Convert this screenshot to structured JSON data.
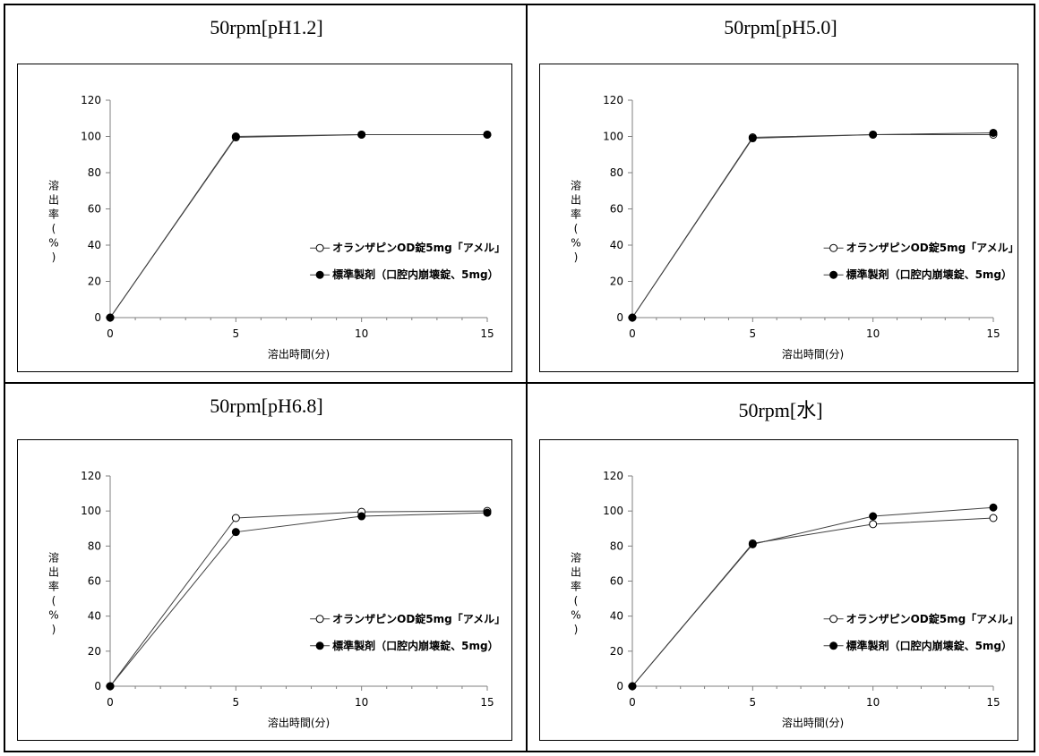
{
  "chart_data": [
    {
      "type": "line",
      "title": "50rpm[pH1.2]",
      "xlabel": "溶出時間(分)",
      "ylabel": "溶出率(%)",
      "x": [
        0,
        5,
        10,
        15
      ],
      "xlim": [
        0,
        15
      ],
      "ylim": [
        0,
        120
      ],
      "xticks": [
        "0",
        "5",
        "10",
        "15"
      ],
      "yticks": [
        "0",
        "20",
        "40",
        "60",
        "80",
        "100",
        "120"
      ],
      "grid": false,
      "legend_position": "bottom-right",
      "series": [
        {
          "name": "オランザピンOD錠5mg「アメル」",
          "marker": "open-circle",
          "values": [
            0,
            99.5,
            101,
            101
          ]
        },
        {
          "name": "標準製剤（口腔内崩壊錠、5mg）",
          "marker": "filled-circle",
          "values": [
            0,
            100,
            101,
            101
          ]
        }
      ]
    },
    {
      "type": "line",
      "title": "50rpm[pH5.0]",
      "xlabel": "溶出時間(分)",
      "ylabel": "溶出率(%)",
      "x": [
        0,
        5,
        10,
        15
      ],
      "xlim": [
        0,
        15
      ],
      "ylim": [
        0,
        120
      ],
      "xticks": [
        "0",
        "5",
        "10",
        "15"
      ],
      "yticks": [
        "0",
        "20",
        "40",
        "60",
        "80",
        "100",
        "120"
      ],
      "grid": false,
      "legend_position": "bottom-right",
      "series": [
        {
          "name": "オランザピンOD錠5mg「アメル」",
          "marker": "open-circle",
          "values": [
            0,
            99.5,
            101,
            101
          ]
        },
        {
          "name": "標準製剤（口腔内崩壊錠、5mg）",
          "marker": "filled-circle",
          "values": [
            0,
            99,
            101,
            102
          ]
        }
      ]
    },
    {
      "type": "line",
      "title": "50rpm[pH6.8]",
      "xlabel": "溶出時間(分)",
      "ylabel": "溶出率(%)",
      "x": [
        0,
        5,
        10,
        15
      ],
      "xlim": [
        0,
        15
      ],
      "ylim": [
        0,
        120
      ],
      "xticks": [
        "0",
        "5",
        "10",
        "15"
      ],
      "yticks": [
        "0",
        "20",
        "40",
        "60",
        "80",
        "100",
        "120"
      ],
      "grid": false,
      "legend_position": "bottom-right",
      "series": [
        {
          "name": "オランザピンOD錠5mg「アメル」",
          "marker": "open-circle",
          "values": [
            0,
            96,
            99.5,
            100
          ]
        },
        {
          "name": "標準製剤（口腔内崩壊錠、5mg）",
          "marker": "filled-circle",
          "values": [
            0,
            88,
            97,
            99
          ]
        }
      ]
    },
    {
      "type": "line",
      "title": "50rpm[水]",
      "xlabel": "溶出時間(分)",
      "ylabel": "溶出率(%)",
      "x": [
        0,
        5,
        10,
        15
      ],
      "xlim": [
        0,
        15
      ],
      "ylim": [
        0,
        120
      ],
      "xticks": [
        "0",
        "5",
        "10",
        "15"
      ],
      "yticks": [
        "0",
        "20",
        "40",
        "60",
        "80",
        "100",
        "120"
      ],
      "grid": false,
      "legend_position": "bottom-right",
      "series": [
        {
          "name": "オランザピンOD錠5mg「アメル」",
          "marker": "open-circle",
          "values": [
            0,
            81.5,
            92.5,
            96
          ]
        },
        {
          "name": "標準製剤（口腔内崩壊錠、5mg）",
          "marker": "filled-circle",
          "values": [
            0,
            81,
            97,
            102
          ]
        }
      ]
    }
  ]
}
